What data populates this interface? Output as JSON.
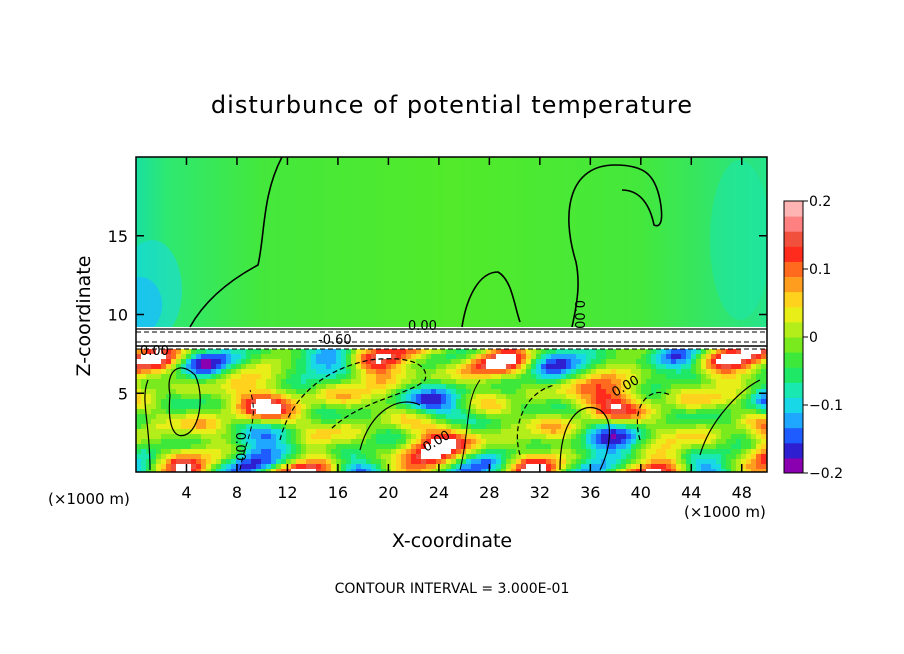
{
  "chart_data": {
    "type": "heatmap",
    "title": "disturbunce of potential temperature",
    "xlabel": "X-coordinate",
    "ylabel": "Z-coordinate",
    "x_unit_left": "(×1000 m)",
    "x_unit_right": "(×1000 m)",
    "footer": "CONTOUR INTERVAL = 3.000E-01",
    "xlim": [
      0,
      50
    ],
    "ylim": [
      0,
      20
    ],
    "xticks": [
      "4",
      "8",
      "12",
      "16",
      "20",
      "24",
      "28",
      "32",
      "36",
      "40",
      "44",
      "48"
    ],
    "yticks": [
      "5",
      "10",
      "15"
    ],
    "colorbar": {
      "min": -0.2,
      "max": 0.2,
      "tick_labels": [
        "0.2",
        "0.1",
        "0",
        "−0.1",
        "−0.2"
      ],
      "tick_values": [
        0.2,
        0.1,
        0,
        -0.1,
        -0.2
      ],
      "colors": [
        "#8a00b0",
        "#2e1fd0",
        "#1f5cff",
        "#1fa6ff",
        "#18d8e8",
        "#19e8b0",
        "#1ee866",
        "#3ee83a",
        "#78ea1e",
        "#b4ee1a",
        "#e8ee18",
        "#ffd21e",
        "#ff9e1e",
        "#ff6a1e",
        "#ff2c1e",
        "#f0503c",
        "#ff8080",
        "#ffb4b4"
      ]
    },
    "contour_labels": [
      "0.00",
      "0.00",
      "0.00",
      "0.00",
      "0.00",
      "0.00",
      "-0.60"
    ],
    "upper_layer_color": "#3ee83a"
  }
}
